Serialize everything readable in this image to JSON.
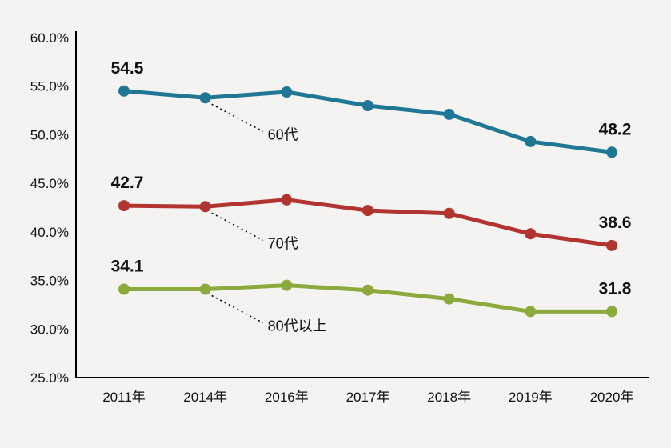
{
  "chart_data": {
    "type": "line",
    "title": "",
    "xlabel": "",
    "ylabel": "",
    "categories": [
      "2011年",
      "2014年",
      "2016年",
      "2017年",
      "2018年",
      "2019年",
      "2020年"
    ],
    "ylim": [
      25,
      60
    ],
    "ytick_step": 5,
    "ytick_labels": [
      "60.0%",
      "55.0%",
      "50.0%",
      "45.0%",
      "40.0%",
      "35.0%",
      "30.0%",
      "25.0%"
    ],
    "grid": false,
    "legend_position": "inline-annotations",
    "series": [
      {
        "name": "60代",
        "color": "#1f7795",
        "values": [
          54.5,
          53.8,
          54.4,
          53.0,
          52.1,
          49.3,
          48.2
        ],
        "first_label": "54.5",
        "last_label": "48.2"
      },
      {
        "name": "70代",
        "color": "#b23431",
        "values": [
          42.7,
          42.6,
          43.3,
          42.2,
          41.9,
          39.8,
          38.6
        ],
        "first_label": "42.7",
        "last_label": "38.6"
      },
      {
        "name": "80代以上",
        "color": "#8ca93d",
        "values": [
          34.1,
          34.1,
          34.5,
          34.0,
          33.1,
          31.8,
          31.8
        ],
        "first_label": "34.1",
        "last_label": "31.8"
      }
    ]
  },
  "colors": {
    "background": "#f4f3f1",
    "axis": "#000000",
    "text": "#111111",
    "leader_line": "#000000"
  }
}
